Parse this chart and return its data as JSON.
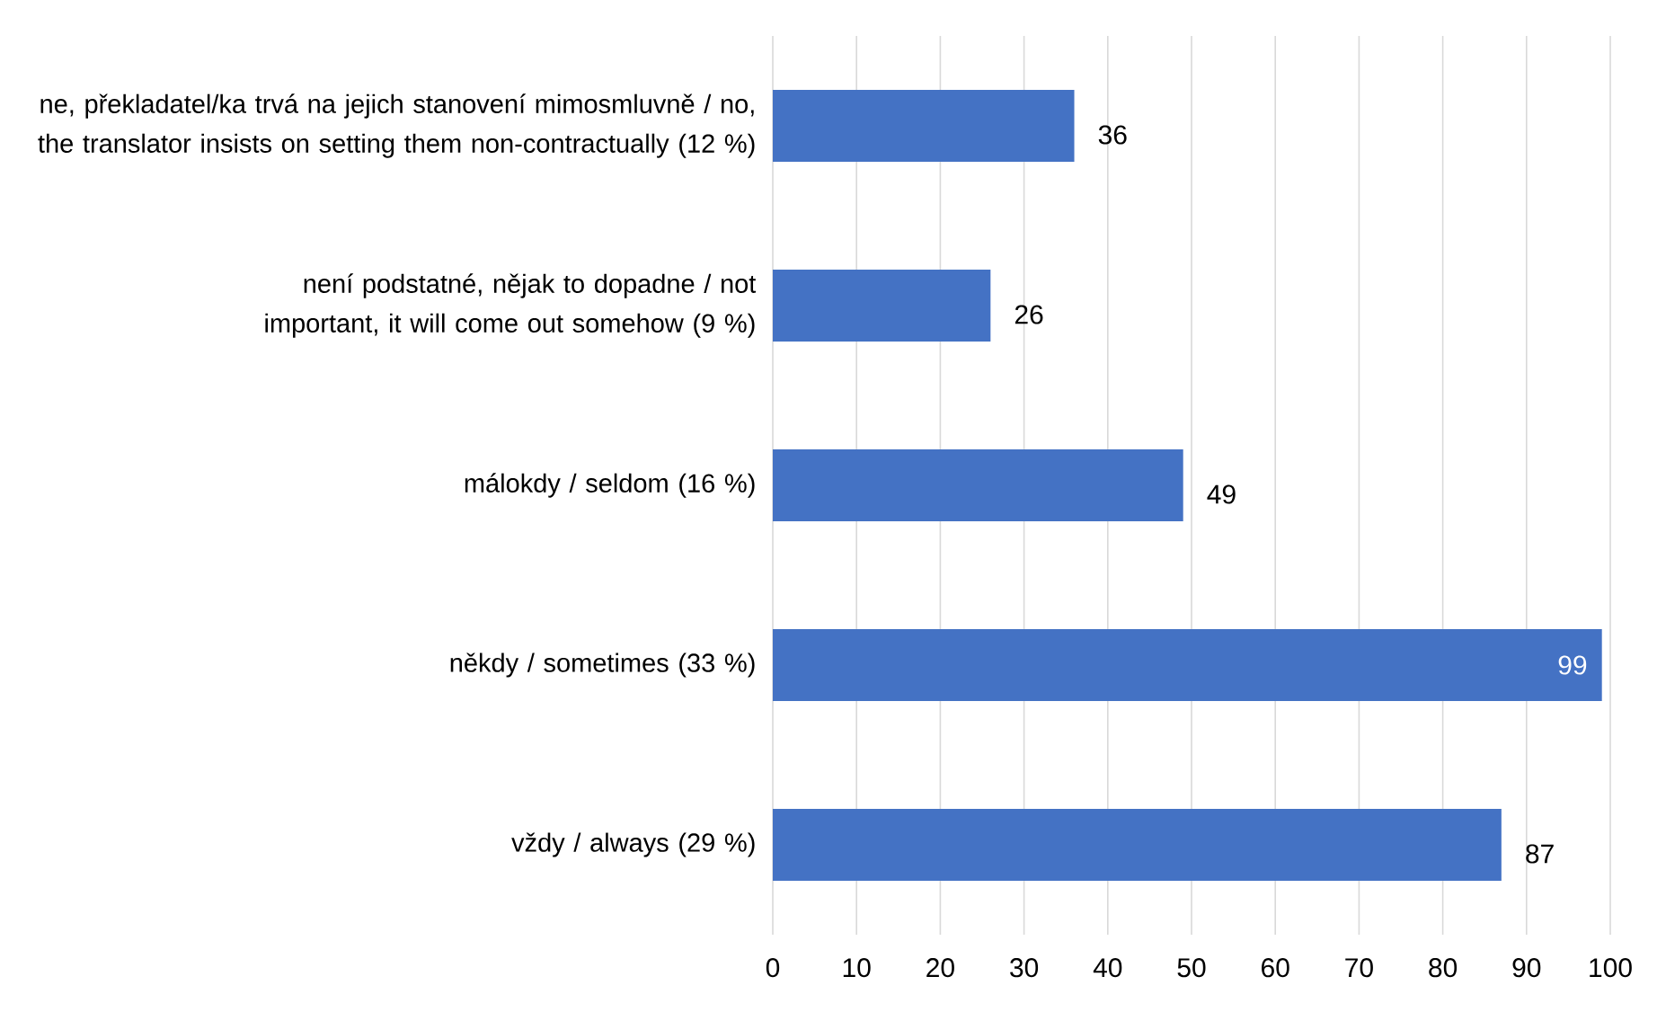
{
  "chart_data": {
    "type": "bar",
    "orientation": "horizontal",
    "categories": [
      "ne, překladatel/ka trvá na jejich stanovení mimosmluvně / no, the translator insists on setting them non-contractually (12 %)",
      "není podstatné, nějak to dopadne / not important, it will come out somehow (9 %)",
      "málokdy / seldom (16 %)",
      "někdy / sometimes (33 %)",
      "vždy / always (29 %)"
    ],
    "values": [
      36,
      26,
      49,
      99,
      87
    ],
    "color": "#4472c4",
    "xlim": [
      0,
      100
    ],
    "xticks": [
      0,
      10,
      20,
      30,
      40,
      50,
      60,
      70,
      80,
      90,
      100
    ],
    "grid": "x",
    "data_labels": true
  }
}
